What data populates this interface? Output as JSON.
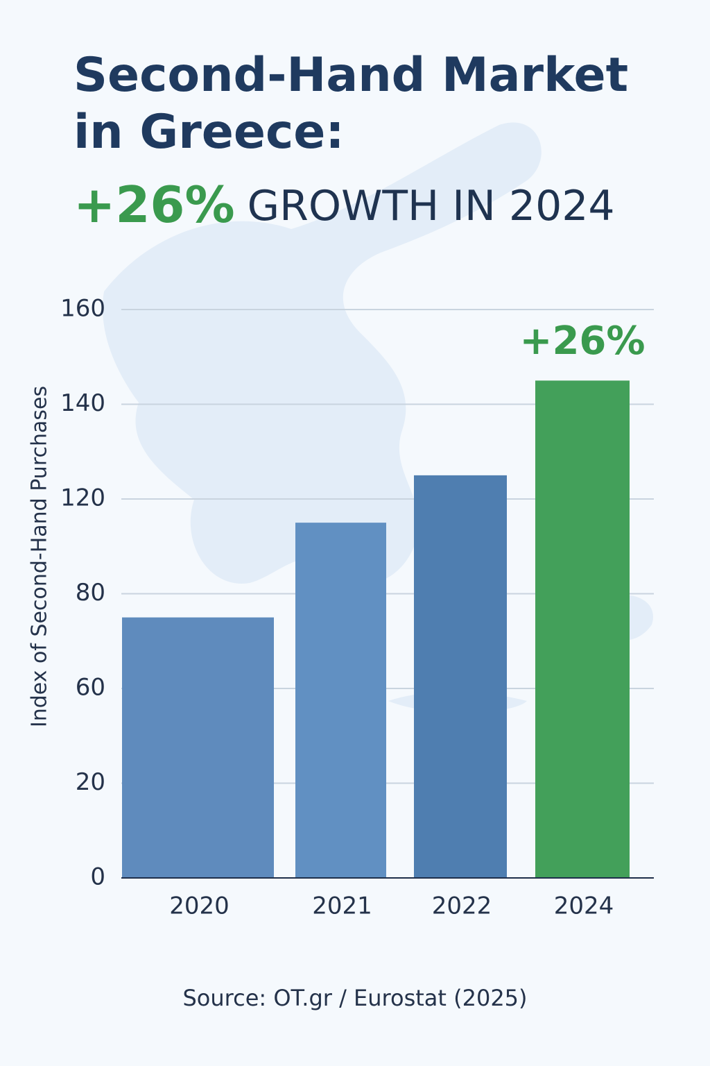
{
  "chart_data": {
    "type": "bar",
    "title": "Second-Hand Market in Greece:",
    "subtitle": {
      "highlight": "+26%",
      "text": "GROWTH IN 2024"
    },
    "y_label": "Index of Second-Hand Purchases",
    "categories": [
      "2020",
      "2021",
      "2022",
      "2024"
    ],
    "values": [
      75,
      110,
      125,
      145
    ],
    "colors": [
      "#5f8bbd",
      "#6190c2",
      "#4f7eb0",
      "#43a05a"
    ],
    "yticks": [
      0,
      20,
      60,
      80,
      120,
      140,
      160
    ],
    "ylim": [
      0,
      160
    ],
    "grid": true,
    "annotation": "+26%",
    "source": "Source: OT.gr / Eurostat (2025)"
  }
}
